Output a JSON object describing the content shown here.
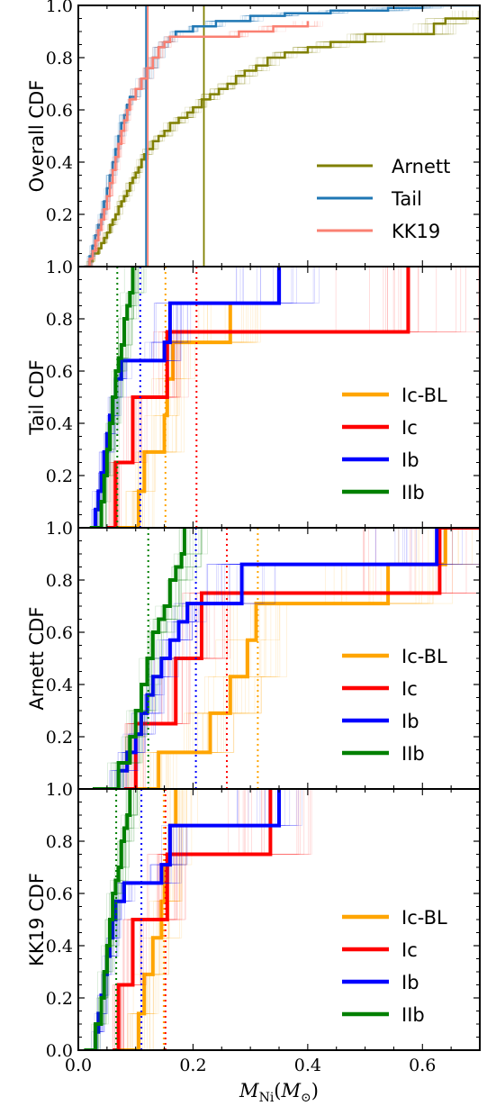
{
  "chart_data": [
    {
      "type": "line",
      "ylabel": "Overall CDF",
      "xlim": [
        0,
        0.7
      ],
      "ylim": [
        0,
        1
      ],
      "yticks": [
        "0.2",
        "0.4",
        "0.6",
        "0.8",
        "1.0"
      ],
      "legend_placement": "lower-right",
      "series": [
        {
          "name": "Arnett",
          "color": "#808000",
          "median": 0.219,
          "x": [
            0.015,
            0.02,
            0.025,
            0.035,
            0.04,
            0.045,
            0.05,
            0.055,
            0.06,
            0.065,
            0.07,
            0.075,
            0.08,
            0.085,
            0.09,
            0.095,
            0.1,
            0.105,
            0.11,
            0.115,
            0.12,
            0.13,
            0.14,
            0.15,
            0.16,
            0.175,
            0.19,
            0.2,
            0.215,
            0.23,
            0.245,
            0.26,
            0.275,
            0.29,
            0.31,
            0.33,
            0.36,
            0.4,
            0.44,
            0.5,
            0.55,
            0.62,
            0.64,
            0.7
          ],
          "y": [
            0.0,
            0.02,
            0.05,
            0.07,
            0.09,
            0.11,
            0.13,
            0.16,
            0.18,
            0.2,
            0.23,
            0.25,
            0.27,
            0.29,
            0.32,
            0.34,
            0.36,
            0.38,
            0.41,
            0.43,
            0.45,
            0.48,
            0.5,
            0.52,
            0.55,
            0.57,
            0.59,
            0.61,
            0.64,
            0.66,
            0.68,
            0.7,
            0.73,
            0.75,
            0.77,
            0.8,
            0.82,
            0.84,
            0.86,
            0.89,
            0.89,
            0.93,
            0.95,
            0.98
          ]
        },
        {
          "name": "Tail",
          "color": "#1f77b4",
          "median": 0.118,
          "x": [
            0.01,
            0.02,
            0.025,
            0.03,
            0.035,
            0.04,
            0.045,
            0.05,
            0.055,
            0.06,
            0.065,
            0.07,
            0.075,
            0.08,
            0.085,
            0.09,
            0.1,
            0.11,
            0.12,
            0.13,
            0.14,
            0.15,
            0.16,
            0.17,
            0.2,
            0.24,
            0.3,
            0.36,
            0.44,
            0.54,
            0.6,
            0.7
          ],
          "y": [
            0.0,
            0.04,
            0.08,
            0.12,
            0.16,
            0.2,
            0.25,
            0.3,
            0.35,
            0.4,
            0.45,
            0.5,
            0.55,
            0.58,
            0.62,
            0.65,
            0.68,
            0.72,
            0.76,
            0.8,
            0.84,
            0.86,
            0.88,
            0.9,
            0.92,
            0.94,
            0.96,
            0.97,
            0.98,
            0.99,
            1.0,
            1.0
          ]
        },
        {
          "name": "KK19",
          "color": "#fa8072",
          "median": 0.121,
          "x": [
            0.012,
            0.02,
            0.025,
            0.03,
            0.035,
            0.04,
            0.045,
            0.05,
            0.055,
            0.06,
            0.065,
            0.07,
            0.075,
            0.08,
            0.085,
            0.09,
            0.1,
            0.11,
            0.12,
            0.13,
            0.14,
            0.15,
            0.16,
            0.2,
            0.28,
            0.34,
            0.4
          ],
          "y": [
            0.0,
            0.03,
            0.06,
            0.1,
            0.14,
            0.18,
            0.22,
            0.27,
            0.32,
            0.37,
            0.42,
            0.47,
            0.52,
            0.56,
            0.6,
            0.64,
            0.68,
            0.72,
            0.76,
            0.8,
            0.84,
            0.86,
            0.88,
            0.88,
            0.9,
            0.92,
            0.94
          ]
        }
      ]
    },
    {
      "type": "line",
      "ylabel": "Tail CDF",
      "xlim": [
        0,
        0.7
      ],
      "ylim": [
        0,
        1
      ],
      "yticks": [
        "0.2",
        "0.4",
        "0.6",
        "0.8",
        "1.0"
      ],
      "legend_placement": "lower-right",
      "series": [
        {
          "name": "Ic-BL",
          "color": "#ffa500",
          "median": 0.152,
          "x": [
            0.065,
            0.105,
            0.115,
            0.15,
            0.155,
            0.165,
            0.265
          ],
          "y": [
            0.0,
            0.14,
            0.29,
            0.43,
            0.57,
            0.71,
            0.86
          ]
        },
        {
          "name": "Ic",
          "color": "#ff0000",
          "median": 0.206,
          "x": [
            0.05,
            0.065,
            0.095,
            0.14,
            0.155,
            0.575
          ],
          "y": [
            0.0,
            0.25,
            0.5,
            0.5,
            0.75,
            1.0
          ]
        },
        {
          "name": "Ib",
          "color": "#0000ff",
          "median": 0.108,
          "x": [
            0.025,
            0.03,
            0.035,
            0.04,
            0.045,
            0.05,
            0.055,
            0.06,
            0.065,
            0.075,
            0.15,
            0.16,
            0.35
          ],
          "y": [
            0.0,
            0.07,
            0.14,
            0.21,
            0.29,
            0.36,
            0.43,
            0.5,
            0.57,
            0.64,
            0.71,
            0.86,
            1.0
          ]
        },
        {
          "name": "IIb",
          "color": "#008000",
          "median": 0.068,
          "x": [
            0.02,
            0.04,
            0.045,
            0.05,
            0.055,
            0.06,
            0.065,
            0.07,
            0.075,
            0.08,
            0.085,
            0.09,
            0.095
          ],
          "y": [
            0.0,
            0.1,
            0.2,
            0.3,
            0.4,
            0.5,
            0.6,
            0.65,
            0.7,
            0.8,
            0.85,
            0.9,
            1.0
          ]
        }
      ]
    },
    {
      "type": "line",
      "ylabel": "Arnett CDF",
      "xlim": [
        0,
        0.7
      ],
      "ylim": [
        0,
        1
      ],
      "yticks": [
        "0.2",
        "0.4",
        "0.6",
        "0.8",
        "1.0"
      ],
      "legend_placement": "lower-right",
      "series": [
        {
          "name": "Ic-BL",
          "color": "#ffa500",
          "median": 0.313,
          "x": [
            0.085,
            0.14,
            0.19,
            0.23,
            0.265,
            0.295,
            0.31,
            0.54,
            0.64
          ],
          "y": [
            0.0,
            0.14,
            0.14,
            0.29,
            0.43,
            0.57,
            0.71,
            0.86,
            1.0
          ]
        },
        {
          "name": "Ic",
          "color": "#ff0000",
          "median": 0.259,
          "x": [
            0.08,
            0.1,
            0.17,
            0.215,
            0.63,
            0.7
          ],
          "y": [
            0.0,
            0.25,
            0.5,
            0.75,
            1.0,
            1.0
          ]
        },
        {
          "name": "Ib",
          "color": "#0000ff",
          "median": 0.205,
          "x": [
            0.04,
            0.07,
            0.085,
            0.1,
            0.11,
            0.12,
            0.13,
            0.145,
            0.16,
            0.175,
            0.19,
            0.285,
            0.625
          ],
          "y": [
            0.0,
            0.07,
            0.14,
            0.21,
            0.29,
            0.36,
            0.43,
            0.5,
            0.57,
            0.64,
            0.71,
            0.86,
            1.0
          ]
        },
        {
          "name": "IIb",
          "color": "#008000",
          "median": 0.122,
          "x": [
            0.025,
            0.07,
            0.09,
            0.1,
            0.11,
            0.12,
            0.13,
            0.14,
            0.15,
            0.16,
            0.17,
            0.18,
            0.185
          ],
          "y": [
            0.0,
            0.1,
            0.2,
            0.3,
            0.4,
            0.5,
            0.6,
            0.65,
            0.7,
            0.8,
            0.85,
            0.9,
            1.0
          ]
        }
      ]
    },
    {
      "type": "line",
      "ylabel": "KK19 CDF",
      "xlim": [
        0,
        0.7
      ],
      "ylim": [
        0,
        1
      ],
      "yticks": [
        "0.0",
        "0.2",
        "0.4",
        "0.6",
        "0.8",
        "1.0"
      ],
      "xticks": [
        "0.0",
        "0.2",
        "0.4",
        "0.6"
      ],
      "xlabel_base": "M",
      "xlabel_sub": "Ni",
      "xlabel_unit_base": "M",
      "xlabel_unit_sub": "⊙",
      "legend_placement": "lower-right",
      "series": [
        {
          "name": "Ic-BL",
          "color": "#ffa500",
          "median": 0.149,
          "x": [
            0.065,
            0.105,
            0.115,
            0.13,
            0.145,
            0.15,
            0.16,
            0.17
          ],
          "y": [
            0.0,
            0.14,
            0.29,
            0.43,
            0.57,
            0.71,
            0.86,
            1.0
          ]
        },
        {
          "name": "Ic",
          "color": "#ff0000",
          "median": 0.152,
          "x": [
            0.06,
            0.07,
            0.095,
            0.12,
            0.155,
            0.335
          ],
          "y": [
            0.0,
            0.25,
            0.5,
            0.5,
            0.75,
            1.0
          ]
        },
        {
          "name": "Ib",
          "color": "#0000ff",
          "median": 0.11,
          "x": [
            0.02,
            0.03,
            0.035,
            0.04,
            0.045,
            0.05,
            0.055,
            0.06,
            0.065,
            0.08,
            0.145,
            0.16,
            0.35
          ],
          "y": [
            0.0,
            0.07,
            0.14,
            0.21,
            0.29,
            0.36,
            0.43,
            0.5,
            0.57,
            0.64,
            0.71,
            0.86,
            1.0
          ]
        },
        {
          "name": "IIb",
          "color": "#008000",
          "median": 0.066,
          "x": [
            0.01,
            0.03,
            0.04,
            0.045,
            0.05,
            0.055,
            0.06,
            0.065,
            0.07,
            0.075,
            0.08,
            0.085,
            0.09
          ],
          "y": [
            0.0,
            0.1,
            0.2,
            0.3,
            0.4,
            0.5,
            0.6,
            0.65,
            0.7,
            0.8,
            0.85,
            0.9,
            1.0
          ]
        }
      ]
    }
  ]
}
